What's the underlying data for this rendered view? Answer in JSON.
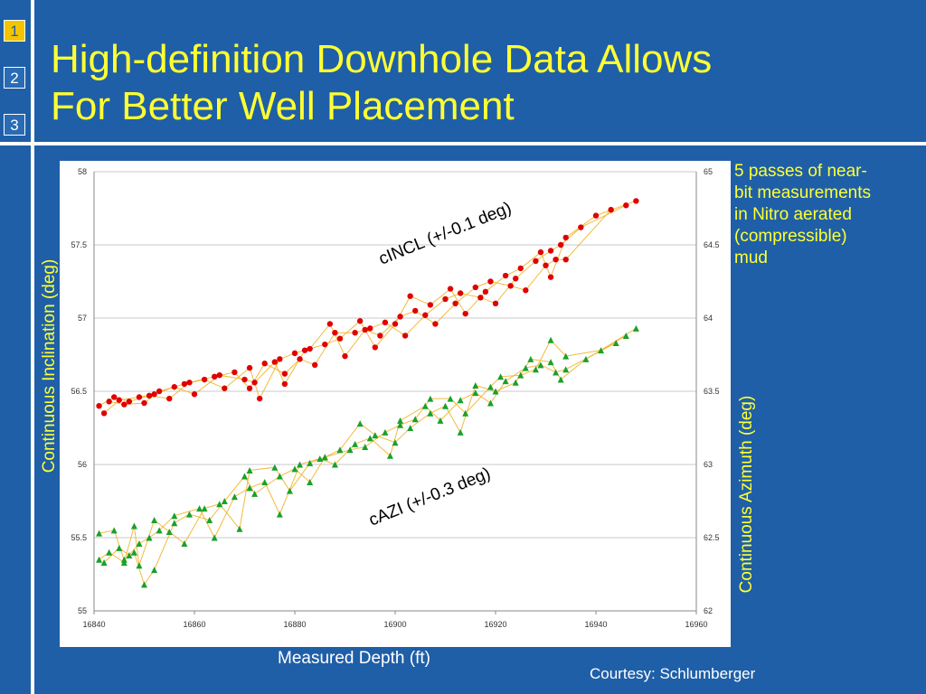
{
  "slide": {
    "title_line1": "High-definition Downhole Data Allows",
    "title_line2": "For Better Well Placement",
    "nav": [
      "1",
      "2",
      "3"
    ],
    "active_nav": "1",
    "note_lines": [
      "5 passes of near-",
      "bit measurements",
      "in Nitro aerated",
      "(compressible)",
      "mud"
    ],
    "courtesy": "Courtesy: Schlumberger"
  },
  "colors": {
    "background": "#1f5fa8",
    "title": "#ffff33",
    "incl_marker": "#e00000",
    "azi_marker": "#1aa02a",
    "connector": "#f0b429"
  },
  "chart_data": {
    "type": "scatter",
    "xlabel": "Measured Depth  (ft)",
    "ylabel_left": "Continuous Inclination  (deg)",
    "ylabel_right": "Continuous Azimuth  (deg)",
    "xlim": [
      16840,
      16960
    ],
    "ylim_left": [
      55,
      58
    ],
    "ylim_right": [
      62,
      65
    ],
    "x_ticks": [
      "16840",
      "16860",
      "16880",
      "16900",
      "16920",
      "16940",
      "16960"
    ],
    "y_ticks_left": [
      "55",
      "55.5",
      "56",
      "56.5",
      "57",
      "57.5",
      "58"
    ],
    "y_ticks_right": [
      "62",
      "62.5",
      "63",
      "63.5",
      "64",
      "64.5",
      "65"
    ],
    "grid": true,
    "annotations": [
      "cINCL (+/-0.1 deg)",
      "cAZI (+/-0.3 deg)"
    ],
    "series": [
      {
        "axis": "left",
        "marker": "circle",
        "points": [
          [
            16841,
            56.4
          ],
          [
            16843,
            56.43
          ],
          [
            16845,
            56.44
          ],
          [
            16847,
            56.43
          ],
          [
            16849,
            56.46
          ],
          [
            16851,
            56.47
          ],
          [
            16853,
            56.5
          ],
          [
            16856,
            56.53
          ],
          [
            16859,
            56.56
          ],
          [
            16862,
            56.58
          ],
          [
            16865,
            56.61
          ],
          [
            16868,
            56.63
          ],
          [
            16871,
            56.66
          ],
          [
            16874,
            56.69
          ],
          [
            16877,
            56.72
          ],
          [
            16880,
            56.76
          ],
          [
            16883,
            56.79
          ],
          [
            16886,
            56.82
          ],
          [
            16889,
            56.86
          ],
          [
            16892,
            56.9
          ],
          [
            16895,
            56.93
          ],
          [
            16898,
            56.97
          ],
          [
            16901,
            57.01
          ],
          [
            16904,
            57.05
          ],
          [
            16907,
            57.09
          ],
          [
            16910,
            57.13
          ],
          [
            16913,
            57.17
          ],
          [
            16916,
            57.21
          ],
          [
            16919,
            57.25
          ],
          [
            16922,
            57.29
          ],
          [
            16925,
            57.34
          ],
          [
            16928,
            57.39
          ],
          [
            16931,
            57.46
          ],
          [
            16934,
            57.55
          ],
          [
            16937,
            57.62
          ],
          [
            16940,
            57.7
          ],
          [
            16943,
            57.74
          ],
          [
            16946,
            57.77
          ],
          [
            16948,
            57.8
          ],
          [
            16842,
            56.35
          ],
          [
            16846,
            56.41
          ],
          [
            16850,
            56.42
          ],
          [
            16855,
            56.45
          ],
          [
            16860,
            56.48
          ],
          [
            16866,
            56.52
          ],
          [
            16872,
            56.56
          ],
          [
            16878,
            56.62
          ],
          [
            16884,
            56.68
          ],
          [
            16890,
            56.74
          ],
          [
            16896,
            56.8
          ],
          [
            16902,
            56.88
          ],
          [
            16908,
            56.96
          ],
          [
            16914,
            57.03
          ],
          [
            16920,
            57.1
          ],
          [
            16926,
            57.19
          ],
          [
            16931,
            57.28
          ],
          [
            16934,
            57.4
          ],
          [
            16844,
            56.46
          ],
          [
            16852,
            56.48
          ],
          [
            16858,
            56.55
          ],
          [
            16864,
            56.6
          ],
          [
            16870,
            56.58
          ],
          [
            16876,
            56.7
          ],
          [
            16882,
            56.78
          ],
          [
            16888,
            56.9
          ],
          [
            16894,
            56.92
          ],
          [
            16900,
            56.96
          ],
          [
            16906,
            57.02
          ],
          [
            16912,
            57.1
          ],
          [
            16918,
            57.18
          ],
          [
            16924,
            57.27
          ],
          [
            16930,
            57.36
          ],
          [
            16933,
            57.5
          ],
          [
            16873,
            56.45
          ],
          [
            16871,
            56.52
          ],
          [
            16878,
            56.55
          ],
          [
            16881,
            56.72
          ],
          [
            16887,
            56.96
          ],
          [
            16893,
            56.98
          ],
          [
            16897,
            56.88
          ],
          [
            16903,
            57.15
          ],
          [
            16911,
            57.2
          ],
          [
            16917,
            57.14
          ],
          [
            16923,
            57.22
          ],
          [
            16929,
            57.45
          ],
          [
            16932,
            57.4
          ]
        ]
      },
      {
        "axis": "right",
        "marker": "triangle",
        "points": [
          [
            16841,
            62.35
          ],
          [
            16843,
            62.4
          ],
          [
            16845,
            62.43
          ],
          [
            16847,
            62.38
          ],
          [
            16849,
            62.46
          ],
          [
            16851,
            62.5
          ],
          [
            16853,
            62.55
          ],
          [
            16856,
            62.6
          ],
          [
            16859,
            62.66
          ],
          [
            16862,
            62.7
          ],
          [
            16865,
            62.73
          ],
          [
            16868,
            62.78
          ],
          [
            16871,
            62.84
          ],
          [
            16874,
            62.88
          ],
          [
            16877,
            62.92
          ],
          [
            16880,
            62.97
          ],
          [
            16883,
            63.01
          ],
          [
            16886,
            63.05
          ],
          [
            16889,
            63.1
          ],
          [
            16892,
            63.14
          ],
          [
            16895,
            63.18
          ],
          [
            16898,
            63.22
          ],
          [
            16901,
            63.27
          ],
          [
            16904,
            63.31
          ],
          [
            16907,
            63.35
          ],
          [
            16910,
            63.4
          ],
          [
            16913,
            63.44
          ],
          [
            16916,
            63.49
          ],
          [
            16919,
            63.53
          ],
          [
            16922,
            63.57
          ],
          [
            16925,
            63.61
          ],
          [
            16928,
            63.65
          ],
          [
            16931,
            63.7
          ],
          [
            16934,
            63.74
          ],
          [
            16938,
            63.72
          ],
          [
            16941,
            63.78
          ],
          [
            16944,
            63.83
          ],
          [
            16946,
            63.88
          ],
          [
            16948,
            63.93
          ],
          [
            16841,
            62.53
          ],
          [
            16844,
            62.55
          ],
          [
            16848,
            62.58
          ],
          [
            16852,
            62.62
          ],
          [
            16856,
            62.65
          ],
          [
            16861,
            62.7
          ],
          [
            16866,
            62.75
          ],
          [
            16871,
            62.96
          ],
          [
            16876,
            62.98
          ],
          [
            16881,
            63.0
          ],
          [
            16886,
            63.05
          ],
          [
            16891,
            63.1
          ],
          [
            16896,
            63.2
          ],
          [
            16901,
            63.3
          ],
          [
            16906,
            63.4
          ],
          [
            16911,
            63.45
          ],
          [
            16916,
            63.54
          ],
          [
            16921,
            63.6
          ],
          [
            16926,
            63.66
          ],
          [
            16931,
            63.85
          ],
          [
            16934,
            63.65
          ],
          [
            16842,
            62.33
          ],
          [
            16846,
            62.33
          ],
          [
            16849,
            62.31
          ],
          [
            16850,
            62.18
          ],
          [
            16852,
            62.28
          ],
          [
            16858,
            62.46
          ],
          [
            16864,
            62.5
          ],
          [
            16869,
            62.56
          ],
          [
            16872,
            62.8
          ],
          [
            16877,
            62.66
          ],
          [
            16883,
            62.88
          ],
          [
            16888,
            63.0
          ],
          [
            16894,
            63.12
          ],
          [
            16899,
            63.06
          ],
          [
            16903,
            63.25
          ],
          [
            16909,
            63.3
          ],
          [
            16914,
            63.35
          ],
          [
            16919,
            63.42
          ],
          [
            16924,
            63.56
          ],
          [
            16929,
            63.68
          ],
          [
            16932,
            63.63
          ],
          [
            16846,
            62.35
          ],
          [
            16848,
            62.4
          ],
          [
            16855,
            62.54
          ],
          [
            16863,
            62.62
          ],
          [
            16870,
            62.92
          ],
          [
            16879,
            62.82
          ],
          [
            16885,
            63.04
          ],
          [
            16893,
            63.28
          ],
          [
            16900,
            63.15
          ],
          [
            16907,
            63.45
          ],
          [
            16913,
            63.22
          ],
          [
            16920,
            63.5
          ],
          [
            16927,
            63.72
          ],
          [
            16933,
            63.58
          ]
        ]
      }
    ]
  }
}
